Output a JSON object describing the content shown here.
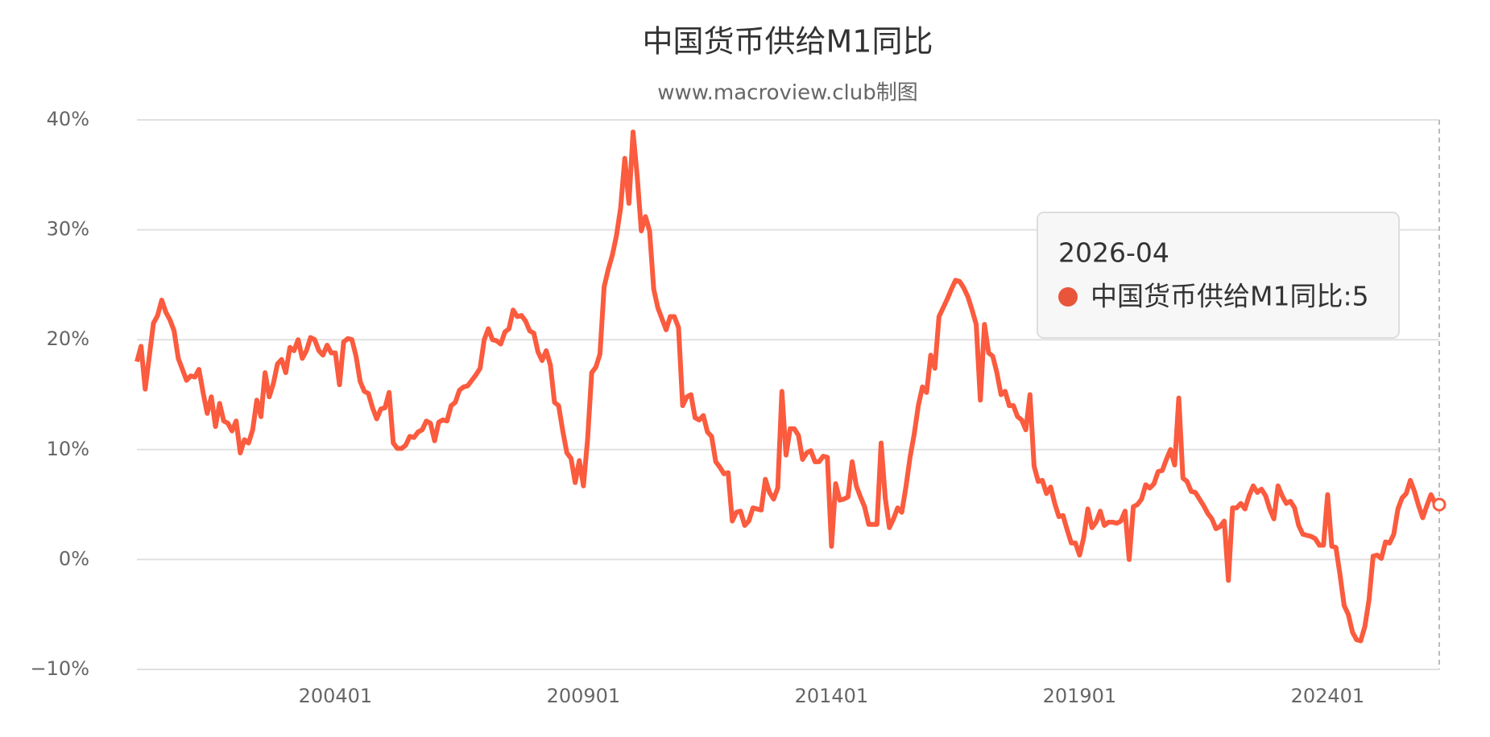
{
  "chart_data": {
    "type": "line",
    "title": "中国货币供给M1同比",
    "subtitle": "www.macroview.club制图",
    "categories": [
      null,
      null,
      null,
      null,
      null,
      null,
      null,
      null,
      null,
      null,
      null,
      null,
      null,
      null,
      null,
      null,
      null,
      null,
      null,
      null,
      null,
      null,
      null,
      null,
      null,
      null,
      null,
      null,
      null,
      null,
      null,
      null,
      null,
      null,
      null,
      null,
      null,
      null,
      null,
      null,
      null,
      null,
      null,
      null,
      null,
      null,
      null,
      null,
      "200401",
      null,
      null,
      null,
      null,
      null,
      null,
      null,
      null,
      null,
      null,
      null,
      null,
      null,
      null,
      null,
      null,
      null,
      null,
      null,
      null,
      null,
      null,
      null,
      null,
      null,
      null,
      null,
      null,
      null,
      null,
      null,
      null,
      null,
      null,
      null,
      null,
      null,
      null,
      null,
      null,
      null,
      null,
      null,
      null,
      null,
      null,
      null,
      null,
      null,
      null,
      null,
      null,
      null,
      null,
      null,
      null,
      null,
      null,
      null,
      "200901",
      null,
      null,
      null,
      null,
      null,
      null,
      null,
      null,
      null,
      null,
      null,
      null,
      null,
      null,
      null,
      null,
      null,
      null,
      null,
      null,
      null,
      null,
      null,
      null,
      null,
      null,
      null,
      null,
      null,
      null,
      null,
      null,
      null,
      null,
      null,
      null,
      null,
      null,
      null,
      null,
      null,
      null,
      null,
      null,
      null,
      null,
      null,
      null,
      null,
      null,
      null,
      null,
      null,
      null,
      null,
      null,
      null,
      null,
      null,
      "201401",
      null,
      null,
      null,
      null,
      null,
      null,
      null,
      null,
      null,
      null,
      null,
      null,
      null,
      null,
      null,
      null,
      null,
      null,
      null,
      null,
      null,
      null,
      null,
      null,
      null,
      null,
      null,
      null,
      null,
      null,
      null,
      null,
      null,
      null,
      null,
      null,
      null,
      null,
      null,
      null,
      null,
      null,
      null,
      null,
      null,
      null,
      null,
      null,
      null,
      null,
      null,
      null,
      null,
      null,
      null,
      null,
      null,
      null,
      null,
      "201901",
      null,
      null,
      null,
      null,
      null,
      null,
      null,
      null,
      null,
      null,
      null,
      null,
      null,
      null,
      null,
      null,
      null,
      null,
      null,
      null,
      null,
      null,
      null,
      null,
      null,
      null,
      null,
      null,
      null,
      null,
      null,
      null,
      null,
      null,
      null,
      null,
      null,
      null,
      null,
      null,
      null,
      null,
      null,
      null,
      null,
      null,
      null,
      null,
      null,
      null,
      null,
      null,
      null,
      null,
      null,
      null,
      null,
      null,
      null,
      "202401",
      null,
      null,
      null,
      null,
      null,
      null,
      null,
      null,
      null,
      null,
      null,
      null,
      null,
      null,
      null,
      null,
      null,
      null,
      null,
      null,
      null,
      null,
      null,
      null,
      null,
      null,
      null
    ],
    "series": [
      {
        "name": "中国货币供给M1同比",
        "color": "#fb5b3e",
        "values": [
          18.0,
          19.4,
          15.5,
          18.5,
          21.5,
          22.2,
          23.6,
          22.5,
          21.8,
          20.8,
          18.3,
          17.3,
          16.3,
          16.7,
          16.6,
          17.3,
          15.2,
          13.3,
          14.8,
          12.1,
          14.2,
          12.6,
          12.4,
          11.7,
          12.6,
          9.7,
          10.9,
          10.6,
          11.8,
          14.5,
          13.0,
          17.0,
          14.8,
          16.0,
          17.8,
          18.2,
          17.0,
          19.3,
          19.0,
          20.0,
          18.3,
          19.0,
          20.2,
          20.0,
          19.0,
          18.6,
          19.5,
          18.8,
          18.8,
          15.9,
          19.8,
          20.1,
          20.0,
          18.5,
          16.2,
          15.3,
          15.1,
          13.8,
          12.8,
          13.7,
          13.8,
          15.2,
          10.6,
          10.1,
          10.1,
          10.4,
          11.2,
          11.1,
          11.6,
          11.8,
          12.6,
          12.4,
          10.8,
          12.5,
          12.7,
          12.6,
          14.0,
          14.3,
          15.4,
          15.7,
          15.8,
          16.3,
          16.8,
          17.4,
          20.0,
          21.0,
          20.0,
          19.9,
          19.6,
          20.7,
          21.0,
          22.7,
          22.1,
          22.2,
          21.7,
          20.8,
          20.6,
          18.9,
          18.1,
          19.0,
          17.7,
          14.3,
          14.0,
          11.7,
          9.7,
          9.2,
          7.0,
          9.0,
          6.7,
          10.9,
          17.0,
          17.5,
          18.7,
          24.8,
          26.4,
          27.7,
          29.5,
          32.0,
          36.5,
          32.4,
          38.9,
          34.9,
          29.9,
          31.2,
          29.9,
          24.6,
          22.9,
          21.9,
          20.9,
          22.1,
          22.1,
          21.1,
          14.0,
          14.8,
          15.0,
          12.9,
          12.7,
          13.1,
          11.6,
          11.2,
          8.9,
          8.4,
          7.8,
          7.9,
          3.5,
          4.3,
          4.4,
          3.1,
          3.5,
          4.7,
          4.6,
          4.5,
          7.3,
          6.1,
          5.5,
          6.5,
          15.3,
          9.5,
          11.9,
          11.9,
          11.3,
          9.1,
          9.7,
          9.9,
          8.9,
          8.9,
          9.4,
          9.3,
          1.2,
          6.9,
          5.4,
          5.5,
          5.7,
          8.9,
          6.7,
          5.7,
          4.8,
          3.2,
          3.2,
          3.2,
          10.6,
          5.6,
          2.9,
          3.7,
          4.7,
          4.3,
          6.6,
          9.3,
          11.4,
          14.0,
          15.7,
          15.2,
          18.6,
          17.4,
          22.1,
          22.9,
          23.7,
          24.6,
          25.4,
          25.3,
          24.7,
          23.9,
          22.7,
          21.4,
          14.5,
          21.4,
          18.8,
          18.5,
          17.0,
          15.0,
          15.3,
          14.0,
          14.0,
          13.0,
          12.7,
          11.8,
          15.0,
          8.5,
          7.1,
          7.2,
          6.0,
          6.6,
          5.1,
          3.9,
          4.0,
          2.7,
          1.5,
          1.5,
          0.4,
          2.0,
          4.6,
          2.9,
          3.4,
          4.4,
          3.1,
          3.4,
          3.4,
          3.3,
          3.5,
          4.4,
          0.0,
          4.8,
          5.0,
          5.5,
          6.8,
          6.5,
          6.9,
          8.0,
          8.1,
          9.1,
          10.0,
          8.6,
          14.7,
          7.4,
          7.1,
          6.2,
          6.1,
          5.5,
          4.9,
          4.2,
          3.7,
          2.8,
          3.0,
          3.5,
          -1.9,
          4.7,
          4.7,
          5.1,
          4.6,
          5.8,
          6.7,
          6.1,
          6.4,
          5.8,
          4.6,
          3.7,
          6.7,
          5.8,
          5.1,
          5.3,
          4.7,
          3.1,
          2.3,
          2.2,
          2.1,
          1.9,
          1.3,
          1.3,
          5.9,
          1.2,
          1.1,
          -1.4,
          -4.2,
          -5.0,
          -6.6,
          -7.3,
          -7.4,
          -6.1,
          -3.7,
          0.3,
          0.4,
          0.1,
          1.6,
          1.5,
          2.3,
          4.6,
          5.6,
          6.0,
          7.2,
          6.2,
          4.9,
          3.8,
          4.9,
          5.9,
          5.1,
          5.0
        ]
      }
    ],
    "ylim": [
      -10,
      40
    ],
    "yticks": [
      {
        "value": -10,
        "label": "−10%"
      },
      {
        "value": 0,
        "label": "0%"
      },
      {
        "value": 10,
        "label": "10%"
      },
      {
        "value": 20,
        "label": "20%"
      },
      {
        "value": 30,
        "label": "30%"
      },
      {
        "value": 40,
        "label": "40%"
      }
    ],
    "grid": true,
    "tooltip": {
      "date": "2026-04",
      "label": "中国货币供给M1同比:5"
    }
  }
}
